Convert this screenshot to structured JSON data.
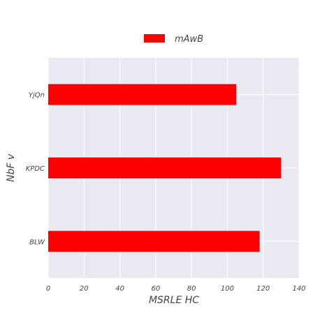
{
  "chart_data": {
    "type": "bar",
    "orientation": "horizontal",
    "categories": [
      "BLW",
      "KPDC",
      "YjQn"
    ],
    "series": [
      {
        "name": "mAwB",
        "values": [
          118,
          130,
          105
        ]
      }
    ],
    "xlabel": "MSRLE HC",
    "ylabel": "NbF v",
    "xlim": [
      0,
      140
    ],
    "xticks": [
      "0",
      "20",
      "40",
      "60",
      "80",
      "100",
      "120",
      "140"
    ],
    "grid": true,
    "legend_position": "top-center"
  },
  "colors": {
    "bar": "#ff0000",
    "plot_background": "#e9e9f1",
    "grid": "#ffffff",
    "text": "#444444"
  }
}
